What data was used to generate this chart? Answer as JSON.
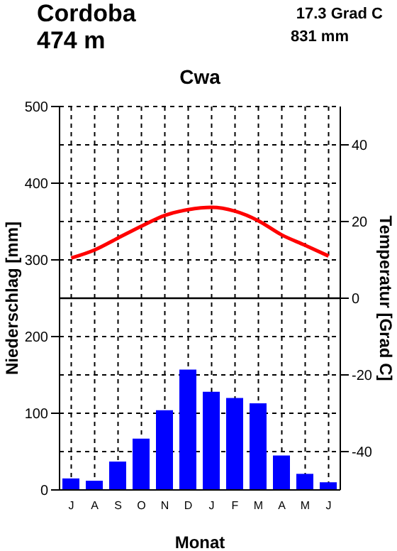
{
  "chart_data": {
    "type": "bar",
    "title": "Cwa",
    "xlabel": "Monat",
    "ylabel": "Niederschlag [mm]",
    "y2label": "Temperatur [Grad C]",
    "annotations": [
      "Cordoba",
      "474 m",
      "17.3 Grad C",
      "831 mm"
    ],
    "categories": [
      "J",
      "A",
      "S",
      "O",
      "N",
      "D",
      "J",
      "F",
      "M",
      "A",
      "M",
      "J"
    ],
    "series": [
      {
        "color": "#0000ff",
        "values": [
          15,
          12,
          37,
          67,
          104,
          157,
          128,
          120,
          113,
          45,
          21,
          10
        ]
      },
      {
        "type": "line",
        "axis": "y2",
        "color": "#ff0000",
        "values": [
          10.5,
          12.6,
          15.7,
          18.8,
          21.6,
          23.1,
          23.7,
          22.7,
          20.2,
          16.5,
          13.8,
          11
        ]
      }
    ],
    "ylim": [
      0,
      500
    ],
    "yticks": [
      0,
      100,
      200,
      300,
      400,
      500
    ],
    "y2lim": [
      -50,
      50
    ],
    "y2ticks": [
      -40,
      -20,
      0,
      20,
      40
    ],
    "ref_lines": [
      {
        "axis": "y2",
        "value": 0,
        "color": "#000000"
      }
    ],
    "grid": true,
    "legend": false,
    "marker": "none"
  }
}
